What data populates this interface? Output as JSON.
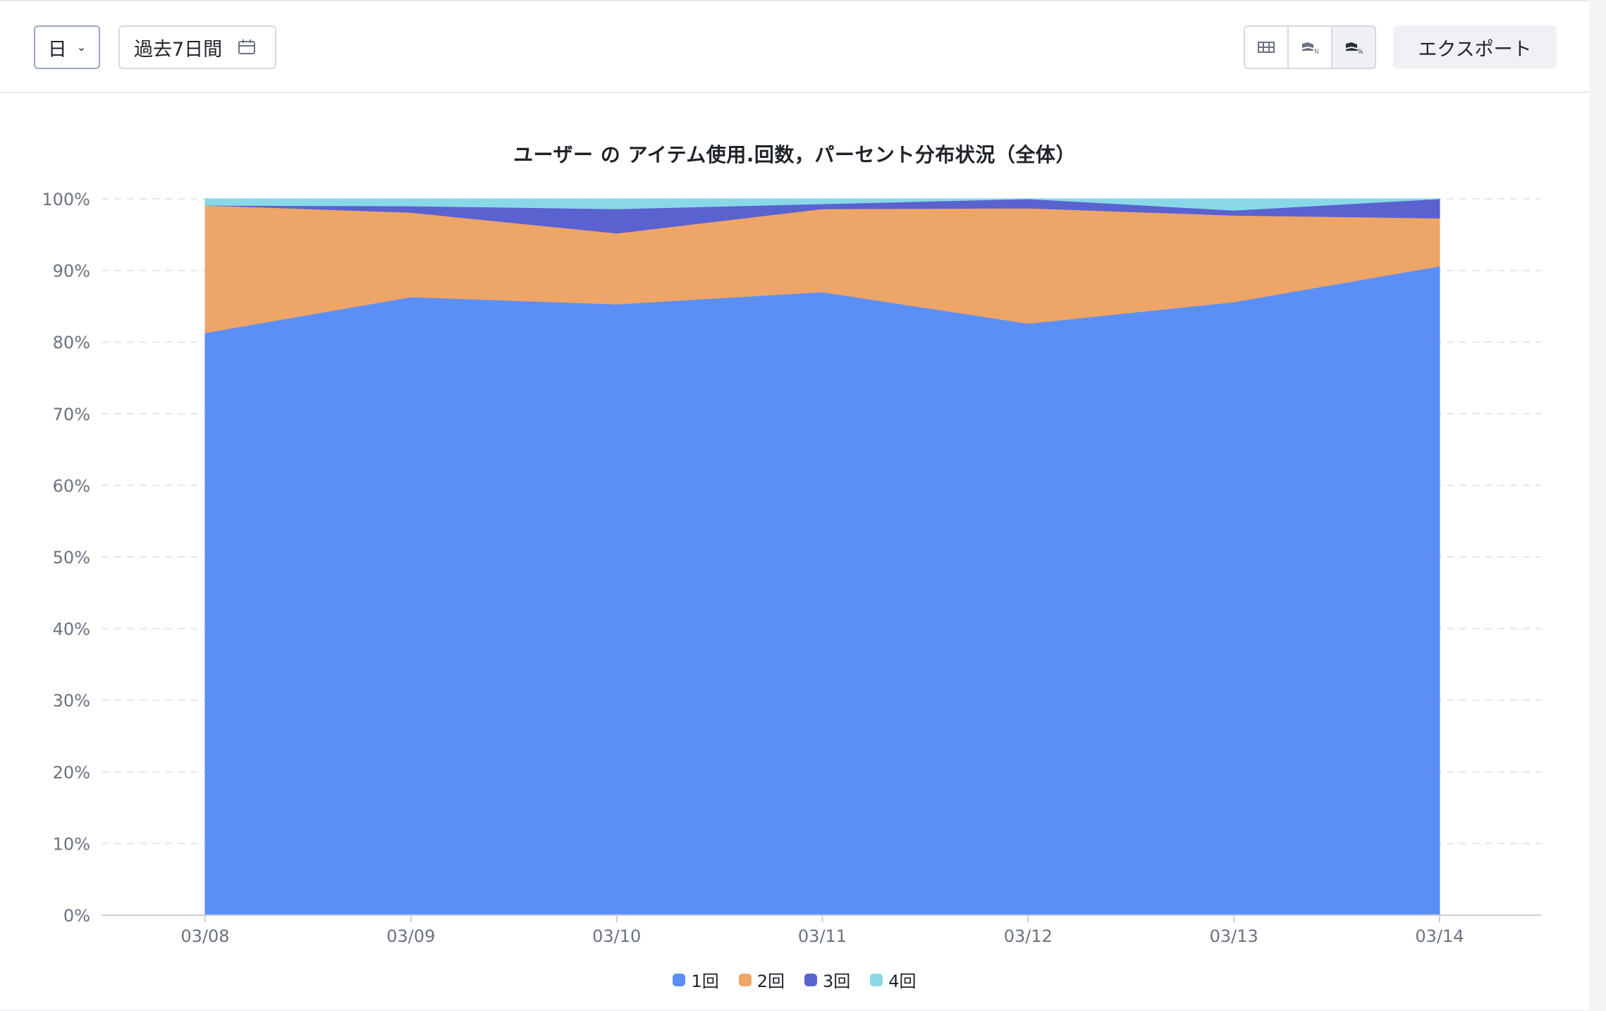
{
  "toolbar": {
    "granularity": "日",
    "date_range": "過去7日間",
    "export_label": "エクスポート",
    "view_modes": [
      "table-view-icon",
      "stacked-count-icon",
      "stacked-percent-icon"
    ]
  },
  "chart_data": {
    "type": "area",
    "stacked": true,
    "percent": true,
    "title": "ユーザー の アイテム使用.回数，パーセント分布状況（全体）",
    "xlabel": "",
    "ylabel": "",
    "categories": [
      "03/08",
      "03/09",
      "03/10",
      "03/11",
      "03/12",
      "03/13",
      "03/14"
    ],
    "ylim": [
      0,
      100
    ],
    "yticks": [
      "0%",
      "10%",
      "20%",
      "30%",
      "40%",
      "50%",
      "60%",
      "70%",
      "80%",
      "90%",
      "100%"
    ],
    "grid": true,
    "legend_position": "bottom",
    "series": [
      {
        "name": "1回",
        "color": "#5b8ff6",
        "values": [
          81.3,
          86.3,
          85.3,
          87.0,
          82.6,
          85.6,
          90.6
        ]
      },
      {
        "name": "2回",
        "color": "#eea568",
        "values": [
          17.8,
          11.8,
          9.9,
          11.6,
          16.1,
          12.1,
          6.7
        ]
      },
      {
        "name": "3回",
        "color": "#5a62d0",
        "values": [
          0.0,
          0.9,
          3.4,
          0.7,
          1.3,
          0.7,
          2.7
        ]
      },
      {
        "name": "4回",
        "color": "#89d8e8",
        "values": [
          0.9,
          1.0,
          1.4,
          0.7,
          0.0,
          1.6,
          0.0
        ]
      }
    ]
  }
}
